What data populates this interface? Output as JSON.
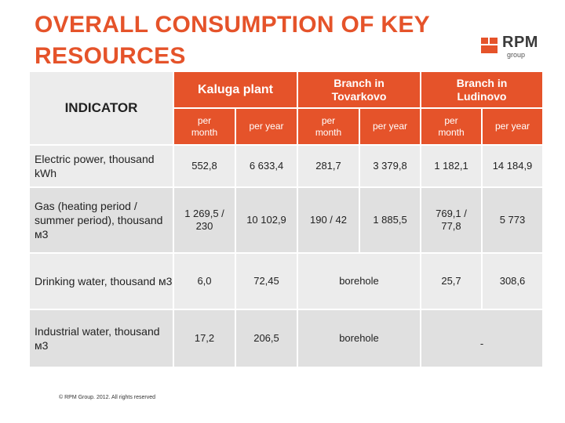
{
  "title": "OVERALL CONSUMPTION OF KEY RESOURCES",
  "logo": {
    "text": "RPM",
    "sub": "group"
  },
  "table": {
    "indicator_header": "INDICATOR",
    "plants": [
      {
        "name": "Kaluga plant"
      },
      {
        "name": "Branch in Tovarkovo"
      },
      {
        "name": "Branch in Ludinovo"
      }
    ],
    "subheaders": [
      "per month",
      "per year",
      "per month",
      "per year",
      "per month",
      "per year"
    ],
    "rows": [
      {
        "label": "Electric power, thousand kWh",
        "cells": [
          "552,8",
          "6 633,4",
          "281,7",
          "3 379,8",
          "1 182,1",
          "14 184,9"
        ]
      },
      {
        "label": "Gas (heating period / summer period), thousand м3",
        "cells": [
          "1 269,5 / 230",
          "10 102,9",
          "190 / 42",
          "1 885,5",
          "769,1 / 77,8",
          "5 773"
        ]
      },
      {
        "label": "Drinking water, thousand м3",
        "cells": [
          "6,0",
          "72,45",
          "borehole",
          "25,7",
          "308,6"
        ]
      },
      {
        "label": "Industrial water, thousand м3",
        "cells": [
          "17,2",
          "206,5",
          "borehole",
          "-"
        ]
      }
    ]
  },
  "footer": {
    "copyright": "© RPM Group. 2012. All rights reserved"
  },
  "colors": {
    "accent": "#e5532a",
    "row_light": "#ececec",
    "row_dark": "#e0e0e0"
  }
}
